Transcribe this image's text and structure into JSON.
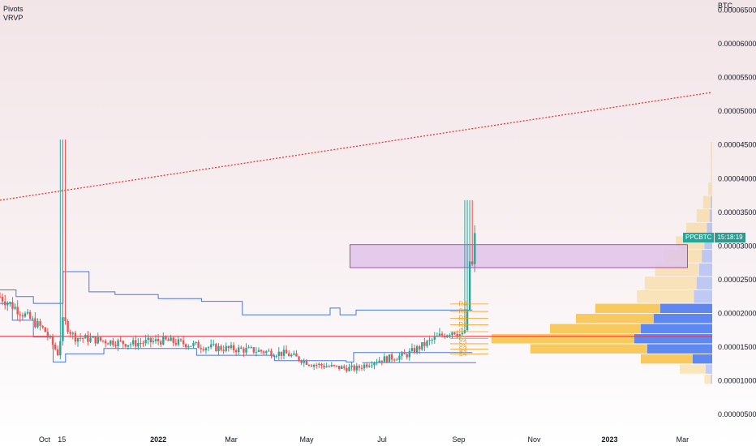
{
  "indicators": {
    "pivots_label": "Pivots",
    "vrvp_label": "VRVP"
  },
  "price_axis": {
    "unit": "BTC",
    "ticks": [
      "0.00006500",
      "0.00006000",
      "0.00005500",
      "0.00005000",
      "0.00004500",
      "0.00004000",
      "0.00003500",
      "0.00003000",
      "0.00002500",
      "0.00002000",
      "0.00001500",
      "0.00001000",
      "0.00000500"
    ]
  },
  "time_axis": {
    "ticks": [
      "Oct",
      "15",
      "2022",
      "Mar",
      "May",
      "Jul",
      "Sep",
      "Nov",
      "2023",
      "Mar"
    ]
  },
  "symbol": {
    "name": "PPCBTC",
    "countdown": "15:18:19",
    "last_price": 3.12e-05
  },
  "pivot_levels": [
    "R4",
    "R3",
    "R2",
    "R1",
    "P",
    "S1",
    "S2",
    "S3",
    "S4"
  ],
  "colors": {
    "up": "#26a69a",
    "down": "#ef5350",
    "channel": "#4a78d8",
    "trendline": "#e53935",
    "support": "#f23645",
    "zone_fill": "#e1c4ea",
    "zone_stroke": "#9c27b0",
    "vp_up": "#f7c44c",
    "vp_down": "#4d7cf0",
    "pivot": "#f0a020"
  },
  "chart_data": {
    "type": "candlestick",
    "x": [
      "2021-08-26",
      "2021-09-10",
      "2021-10-01",
      "2021-10-12",
      "2021-10-16",
      "2021-10-25",
      "2021-11-15",
      "2021-12-10",
      "2022-01-05",
      "2022-02-10",
      "2022-03-20",
      "2022-04-15",
      "2022-05-05",
      "2022-05-25",
      "2022-06-10",
      "2022-06-25",
      "2022-07-20",
      "2022-08-15",
      "2022-08-28",
      "2022-09-05",
      "2022-09-08",
      "2022-09-10",
      "2022-09-12",
      "2022-09-14"
    ],
    "close": [
      2.25e-05,
      2.05e-05,
      1.75e-05,
      1.4e-05,
      1.9e-05,
      1.65e-05,
      1.6e-05,
      1.55e-05,
      1.6e-05,
      1.5e-05,
      1.45e-05,
      1.4e-05,
      1.25e-05,
      1.2e-05,
      1.18e-05,
      1.3e-05,
      1.38e-05,
      1.65e-05,
      1.75e-05,
      1.65e-05,
      2e-05,
      2.8e-05,
      2.7e-05,
      3.12e-05
    ],
    "annotations": {
      "spike_high": 4.58e-05,
      "spike_date": "2021-10-16",
      "sep_high": 3.68e-05,
      "resistance_zone": [
        2.68e-05,
        3.02e-05
      ],
      "support_line": 1.66e-05,
      "trendline": [
        {
          "x": "2021-08-26",
          "y": 3.68e-05
        },
        {
          "x": "2023-03-25",
          "y": 5.28e-05
        }
      ]
    },
    "ylim": [
      2.5e-06,
      6.65e-05
    ],
    "xlim": [
      "2021-08-26",
      "2023-03-25"
    ]
  }
}
